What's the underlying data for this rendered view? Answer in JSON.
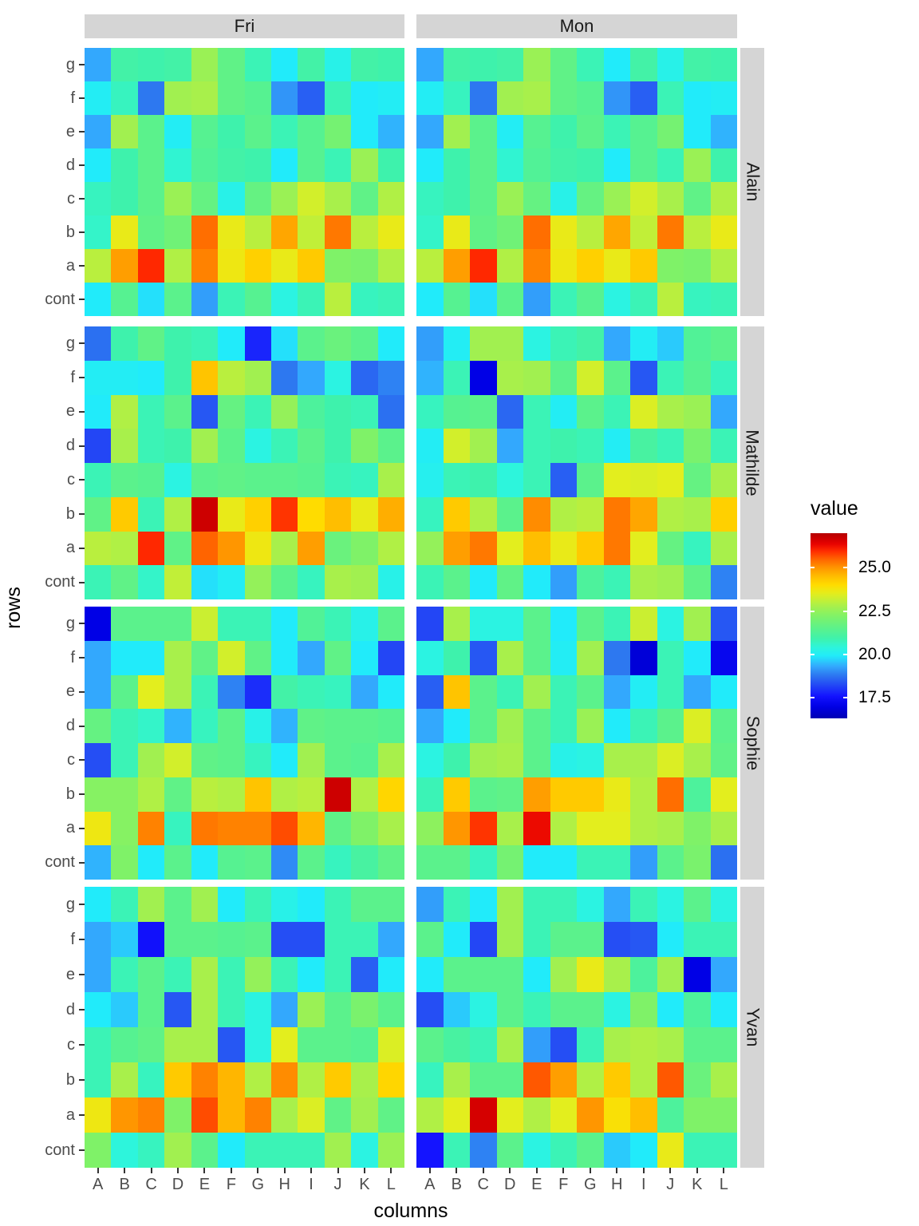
{
  "strips": {
    "cols": [
      "Fri",
      "Mon"
    ],
    "rows": [
      "Alain",
      "Mathilde",
      "Sophie",
      "Yvan"
    ]
  },
  "axes": {
    "x_title": "columns",
    "y_title": "rows",
    "x_ticks": [
      "A",
      "B",
      "C",
      "D",
      "E",
      "F",
      "G",
      "H",
      "I",
      "J",
      "K",
      "L"
    ],
    "y_ticks": [
      "g",
      "f",
      "e",
      "d",
      "c",
      "b",
      "a",
      "cont"
    ]
  },
  "legend": {
    "title": "value",
    "ticks": [
      "25.0",
      "22.5",
      "20.0",
      "17.5"
    ],
    "domain": [
      16.3,
      27.0
    ]
  },
  "colormap": {
    "stops": [
      [
        16.3,
        "#0000B4"
      ],
      [
        17.0,
        "#0000E6"
      ],
      [
        17.6,
        "#1414FF"
      ],
      [
        18.2,
        "#2346F5"
      ],
      [
        18.8,
        "#2D78F0"
      ],
      [
        19.3,
        "#33A8FD"
      ],
      [
        19.9,
        "#21EBFA"
      ],
      [
        20.4,
        "#2DF5DC"
      ],
      [
        20.9,
        "#3EF2AC"
      ],
      [
        21.5,
        "#5BF28C"
      ],
      [
        22.2,
        "#7FF268"
      ],
      [
        22.8,
        "#A8F04B"
      ],
      [
        23.5,
        "#E3EE1E"
      ],
      [
        24.0,
        "#FFDC00"
      ],
      [
        24.5,
        "#FFBE00"
      ],
      [
        25.0,
        "#FF9600"
      ],
      [
        25.5,
        "#FF6400"
      ],
      [
        26.0,
        "#FF2800"
      ],
      [
        26.4,
        "#E60000"
      ],
      [
        27.0,
        "#B40000"
      ]
    ]
  },
  "chart_data": {
    "type": "heatmap",
    "x_categories": [
      "A",
      "B",
      "C",
      "D",
      "E",
      "F",
      "G",
      "H",
      "I",
      "J",
      "K",
      "L"
    ],
    "y_categories_top_to_bottom": [
      "g",
      "f",
      "e",
      "d",
      "c",
      "b",
      "a",
      "cont"
    ],
    "value_label": "value",
    "facets": [
      {
        "row_facet": "Alain",
        "col_facet": "Fri",
        "values": [
          [
            19.3,
            21.0,
            20.9,
            21.0,
            22.6,
            21.6,
            20.8,
            19.9,
            21.0,
            20.2,
            21.0,
            20.9
          ],
          [
            20.0,
            20.7,
            18.8,
            22.7,
            22.8,
            21.6,
            21.4,
            19.1,
            18.5,
            20.8,
            19.9,
            20.0
          ],
          [
            19.3,
            22.7,
            21.5,
            20.0,
            21.4,
            20.9,
            21.5,
            20.8,
            21.4,
            22.0,
            19.9,
            19.4
          ],
          [
            19.9,
            20.9,
            21.5,
            20.5,
            21.3,
            21.0,
            20.9,
            19.9,
            21.4,
            20.8,
            22.6,
            20.9
          ],
          [
            20.7,
            20.9,
            21.5,
            22.6,
            21.7,
            20.2,
            21.7,
            22.6,
            23.3,
            22.8,
            21.6,
            22.9
          ],
          [
            20.6,
            23.6,
            21.6,
            21.9,
            25.4,
            23.6,
            23.0,
            24.8,
            23.1,
            25.3,
            23.0,
            23.6
          ],
          [
            23.0,
            24.9,
            26.0,
            22.9,
            25.2,
            23.7,
            24.2,
            23.6,
            24.3,
            22.2,
            22.1,
            22.9
          ],
          [
            19.9,
            21.4,
            19.8,
            21.5,
            19.2,
            20.8,
            21.4,
            20.3,
            20.8,
            23.0,
            20.7,
            20.8
          ]
        ]
      },
      {
        "row_facet": "Alain",
        "col_facet": "Mon",
        "values": [
          [
            19.3,
            21.0,
            20.9,
            21.0,
            22.6,
            21.6,
            20.8,
            19.9,
            21.0,
            20.2,
            21.0,
            20.9
          ],
          [
            20.0,
            20.7,
            18.8,
            22.7,
            22.8,
            21.6,
            21.4,
            19.1,
            18.5,
            20.8,
            19.9,
            20.0
          ],
          [
            19.3,
            22.7,
            21.5,
            20.0,
            21.4,
            20.9,
            21.5,
            20.8,
            21.4,
            22.0,
            19.9,
            19.4
          ],
          [
            19.9,
            20.9,
            21.5,
            20.5,
            21.3,
            21.0,
            20.9,
            19.9,
            21.4,
            20.8,
            22.6,
            20.9
          ],
          [
            20.7,
            20.9,
            21.5,
            22.6,
            21.7,
            20.2,
            21.7,
            22.6,
            23.3,
            22.8,
            21.6,
            22.9
          ],
          [
            20.6,
            23.6,
            21.6,
            21.9,
            25.4,
            23.6,
            23.0,
            24.8,
            23.1,
            25.3,
            23.0,
            23.6
          ],
          [
            23.0,
            24.9,
            26.0,
            22.9,
            25.2,
            23.7,
            24.2,
            23.6,
            24.3,
            22.2,
            22.1,
            22.9
          ],
          [
            19.9,
            21.4,
            19.8,
            21.5,
            19.2,
            20.8,
            21.4,
            20.3,
            20.8,
            23.0,
            20.7,
            20.8
          ]
        ]
      },
      {
        "row_facet": "Mathilde",
        "col_facet": "Fri",
        "values": [
          [
            18.7,
            20.9,
            21.6,
            20.9,
            20.8,
            19.9,
            17.8,
            19.8,
            21.5,
            21.8,
            21.5,
            19.9
          ],
          [
            20.0,
            20.0,
            19.9,
            20.9,
            24.4,
            23.0,
            22.7,
            18.8,
            19.3,
            20.3,
            18.6,
            18.9
          ],
          [
            19.9,
            22.9,
            20.8,
            21.5,
            18.4,
            21.7,
            20.8,
            22.5,
            21.2,
            20.9,
            20.8,
            18.7
          ],
          [
            18.2,
            22.8,
            20.8,
            20.9,
            22.7,
            21.5,
            20.3,
            20.8,
            21.5,
            20.9,
            22.2,
            21.5
          ],
          [
            20.8,
            21.5,
            21.4,
            20.3,
            21.5,
            21.6,
            21.5,
            21.5,
            21.4,
            20.8,
            20.7,
            22.8
          ],
          [
            21.6,
            24.3,
            20.8,
            22.9,
            26.7,
            23.6,
            24.2,
            25.9,
            24.0,
            24.5,
            23.6,
            24.7
          ],
          [
            23.0,
            22.9,
            26.0,
            21.6,
            25.5,
            25.0,
            23.7,
            22.8,
            24.9,
            21.8,
            22.2,
            22.9
          ],
          [
            20.8,
            21.6,
            20.6,
            23.1,
            19.8,
            20.0,
            22.5,
            21.5,
            20.7,
            22.8,
            22.7,
            20.2
          ]
        ]
      },
      {
        "row_facet": "Mathilde",
        "col_facet": "Mon",
        "values": [
          [
            19.2,
            20.0,
            22.7,
            22.7,
            20.3,
            20.8,
            21.0,
            19.3,
            20.0,
            19.6,
            21.3,
            21.5
          ],
          [
            19.4,
            20.8,
            17.0,
            22.8,
            22.7,
            21.5,
            23.3,
            21.5,
            18.4,
            20.8,
            21.4,
            20.7
          ],
          [
            20.7,
            21.4,
            21.5,
            18.6,
            20.8,
            20.0,
            21.5,
            20.8,
            23.4,
            22.8,
            22.6,
            19.3
          ],
          [
            20.0,
            23.3,
            22.7,
            19.3,
            20.8,
            20.9,
            20.8,
            20.0,
            21.1,
            20.8,
            22.1,
            20.8
          ],
          [
            20.1,
            20.8,
            20.9,
            20.4,
            20.8,
            18.5,
            21.5,
            23.5,
            23.4,
            23.5,
            21.7,
            22.8
          ],
          [
            20.7,
            24.3,
            22.9,
            21.5,
            25.1,
            22.9,
            23.0,
            25.3,
            24.8,
            22.9,
            22.8,
            24.2
          ],
          [
            22.5,
            24.9,
            25.3,
            23.5,
            24.5,
            23.6,
            24.3,
            25.3,
            23.5,
            21.7,
            20.7,
            22.8
          ],
          [
            20.8,
            21.5,
            19.9,
            21.6,
            19.9,
            19.2,
            21.2,
            20.8,
            22.8,
            22.7,
            21.6,
            18.9
          ]
        ]
      },
      {
        "row_facet": "Sophie",
        "col_facet": "Fri",
        "values": [
          [
            17.0,
            21.5,
            21.5,
            21.5,
            23.2,
            20.8,
            20.8,
            19.9,
            21.3,
            20.8,
            20.2,
            21.5
          ],
          [
            19.3,
            19.9,
            19.9,
            22.8,
            21.6,
            23.3,
            21.6,
            19.9,
            19.3,
            21.6,
            19.9,
            18.2
          ],
          [
            19.3,
            21.5,
            23.5,
            22.8,
            20.8,
            18.9,
            17.9,
            21.0,
            20.8,
            20.7,
            19.3,
            19.9
          ],
          [
            21.7,
            20.8,
            20.6,
            19.4,
            20.7,
            21.5,
            20.2,
            19.4,
            21.6,
            21.5,
            21.5,
            21.4
          ],
          [
            18.3,
            20.8,
            22.7,
            23.3,
            21.6,
            21.5,
            20.7,
            19.9,
            22.7,
            21.5,
            21.4,
            22.8
          ],
          [
            22.3,
            22.3,
            22.9,
            21.6,
            23.0,
            22.9,
            24.4,
            22.9,
            23.0,
            26.7,
            22.9,
            24.1
          ],
          [
            23.7,
            22.3,
            25.2,
            20.7,
            25.3,
            25.2,
            25.2,
            25.7,
            24.6,
            21.6,
            22.2,
            22.8
          ],
          [
            19.4,
            22.2,
            19.9,
            21.5,
            19.9,
            21.4,
            21.5,
            19.0,
            21.5,
            20.7,
            21.1,
            21.6
          ]
        ]
      },
      {
        "row_facet": "Sophie",
        "col_facet": "Mon",
        "values": [
          [
            18.2,
            22.8,
            20.3,
            20.3,
            21.5,
            19.9,
            21.5,
            20.8,
            23.2,
            20.3,
            22.7,
            18.4
          ],
          [
            20.3,
            20.9,
            18.4,
            22.8,
            21.5,
            20.0,
            22.7,
            18.8,
            16.8,
            20.8,
            19.9,
            17.2
          ],
          [
            18.5,
            24.4,
            21.5,
            20.8,
            22.7,
            20.8,
            21.5,
            19.3,
            20.0,
            20.8,
            19.3,
            19.9
          ],
          [
            19.3,
            19.9,
            21.5,
            22.7,
            21.5,
            20.8,
            22.6,
            19.9,
            20.8,
            21.5,
            23.4,
            21.5
          ],
          [
            20.3,
            20.9,
            22.7,
            22.8,
            21.5,
            20.2,
            20.3,
            22.8,
            22.8,
            23.4,
            22.8,
            21.6
          ],
          [
            20.8,
            24.3,
            21.5,
            21.6,
            24.9,
            24.3,
            24.3,
            23.6,
            22.9,
            25.4,
            21.2,
            23.5
          ],
          [
            22.4,
            25.0,
            25.9,
            22.8,
            26.3,
            22.9,
            23.5,
            23.5,
            22.9,
            22.8,
            22.2,
            22.8
          ],
          [
            21.5,
            21.5,
            20.7,
            22.0,
            19.9,
            19.9,
            20.8,
            20.8,
            19.2,
            21.5,
            22.1,
            18.7
          ]
        ]
      },
      {
        "row_facet": "Yvan",
        "col_facet": "Fri",
        "values": [
          [
            19.9,
            20.8,
            22.7,
            21.5,
            22.7,
            19.9,
            20.8,
            20.2,
            19.9,
            20.8,
            21.5,
            21.5
          ],
          [
            19.3,
            19.6,
            17.5,
            21.5,
            21.5,
            21.4,
            21.5,
            18.3,
            18.3,
            20.8,
            20.8,
            19.3
          ],
          [
            19.3,
            20.8,
            21.5,
            20.8,
            22.8,
            20.8,
            22.5,
            20.8,
            19.9,
            20.8,
            18.5,
            19.9
          ],
          [
            19.9,
            19.6,
            21.5,
            18.4,
            22.8,
            20.8,
            20.3,
            19.3,
            22.6,
            21.5,
            22.1,
            21.5
          ],
          [
            20.8,
            21.4,
            21.6,
            22.8,
            22.8,
            18.4,
            20.3,
            23.5,
            21.5,
            21.5,
            21.4,
            23.4
          ],
          [
            20.8,
            22.8,
            20.7,
            24.3,
            25.2,
            24.6,
            22.9,
            25.1,
            22.9,
            24.3,
            22.8,
            24.1
          ],
          [
            23.7,
            25.0,
            25.2,
            22.2,
            25.7,
            24.6,
            25.2,
            22.8,
            23.4,
            21.6,
            22.7,
            21.6
          ],
          [
            22.2,
            20.4,
            20.7,
            22.7,
            21.5,
            19.9,
            20.8,
            20.8,
            20.8,
            22.7,
            20.3,
            22.6
          ]
        ]
      },
      {
        "row_facet": "Yvan",
        "col_facet": "Mon",
        "values": [
          [
            19.2,
            20.8,
            19.9,
            22.7,
            20.8,
            20.8,
            20.3,
            19.3,
            20.8,
            20.3,
            21.5,
            20.3
          ],
          [
            21.5,
            19.9,
            18.2,
            22.7,
            20.8,
            21.5,
            21.5,
            18.3,
            18.4,
            19.9,
            20.8,
            20.8
          ],
          [
            19.9,
            21.5,
            21.5,
            21.5,
            19.9,
            22.7,
            23.6,
            22.8,
            21.2,
            22.7,
            17.0,
            19.3
          ],
          [
            18.3,
            19.6,
            20.3,
            21.5,
            20.8,
            21.5,
            21.5,
            20.3,
            22.2,
            19.9,
            21.2,
            19.9
          ],
          [
            21.5,
            21.1,
            20.8,
            22.8,
            19.2,
            18.3,
            20.8,
            22.8,
            22.9,
            22.8,
            21.5,
            21.5
          ],
          [
            20.7,
            22.8,
            21.5,
            21.5,
            25.6,
            24.9,
            22.9,
            24.3,
            22.9,
            25.6,
            21.8,
            22.8
          ],
          [
            22.9,
            23.5,
            26.6,
            23.5,
            22.9,
            23.5,
            25.0,
            23.9,
            24.5,
            21.2,
            22.2,
            22.2
          ],
          [
            17.6,
            20.8,
            18.9,
            21.5,
            20.3,
            20.8,
            21.5,
            19.6,
            19.9,
            23.6,
            20.8,
            20.8
          ]
        ]
      }
    ]
  }
}
